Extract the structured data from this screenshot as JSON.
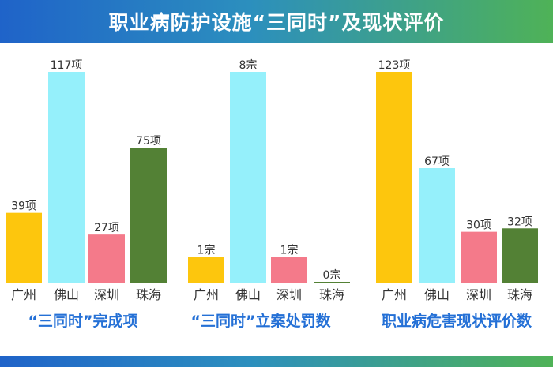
{
  "header": {
    "title": "职业病防护设施“三同时”及现状评价"
  },
  "colors": {
    "header_start": "#1f63c9",
    "header_end": "#4fb257",
    "panel_title": "#2470d6",
    "guangzhou": "#fdc60d",
    "foshan": "#95f0fb",
    "shenzhen": "#f47a8a",
    "zhuhai": "#538135"
  },
  "chart_data": [
    {
      "type": "bar",
      "title": "“三同时”完成项",
      "categories": [
        "广州",
        "佛山",
        "深圳",
        "珠海"
      ],
      "values": [
        39,
        117,
        27,
        75
      ],
      "unit": "项",
      "data_labels": [
        "39项",
        "117项",
        "27项",
        "75项"
      ],
      "ylim": [
        0,
        117
      ],
      "grid": false
    },
    {
      "type": "bar",
      "title": "“三同时”立案处罚数",
      "categories": [
        "广州",
        "佛山",
        "深圳",
        "珠海"
      ],
      "values": [
        1,
        8,
        1,
        0
      ],
      "unit": "宗",
      "data_labels": [
        "1宗",
        "8宗",
        "1宗",
        "0宗"
      ],
      "ylim": [
        0,
        8
      ],
      "grid": false
    },
    {
      "type": "bar",
      "title": "职业病危害现状评价数",
      "categories": [
        "广州",
        "佛山",
        "深圳",
        "珠海"
      ],
      "values": [
        123,
        67,
        30,
        32
      ],
      "unit": "项",
      "data_labels": [
        "123项",
        "67项",
        "30项",
        "32项"
      ],
      "ylim": [
        0,
        123
      ],
      "grid": false
    }
  ]
}
